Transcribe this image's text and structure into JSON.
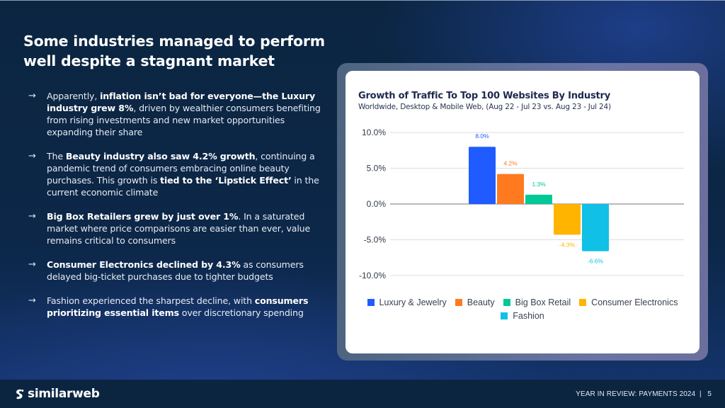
{
  "slide": {
    "title": "Some industries managed to perform well despite a stagnant market",
    "bullets": [
      {
        "icon": "arrow-right-icon",
        "segments": [
          {
            "text": "Apparently, ",
            "bold": false
          },
          {
            "text": "inflation isn’t bad for everyone—the Luxury industry grew 8%",
            "bold": true
          },
          {
            "text": ", driven by wealthier consumers benefiting from rising investments and new market opportunities expanding their share",
            "bold": false
          }
        ]
      },
      {
        "icon": "arrow-right-icon",
        "segments": [
          {
            "text": "The ",
            "bold": false
          },
          {
            "text": "Beauty industry also saw 4.2% growth",
            "bold": true
          },
          {
            "text": ", continuing a pandemic trend of consumers embracing online beauty purchases. This growth is ",
            "bold": false
          },
          {
            "text": "tied to the ‘Lipstick Effect’",
            "bold": true
          },
          {
            "text": " in the current economic climate",
            "bold": false
          }
        ]
      },
      {
        "icon": "arrow-right-icon",
        "segments": [
          {
            "text": "Big Box Retailers grew by just over 1%",
            "bold": true
          },
          {
            "text": ". In a saturated market where price comparisons are easier than ever, value remains critical to consumers",
            "bold": false
          }
        ]
      },
      {
        "icon": "arrow-right-icon",
        "segments": [
          {
            "text": "Consumer Electronics declined by 4.3%",
            "bold": true
          },
          {
            "text": " as consumers delayed big-ticket purchases due to tighter budgets",
            "bold": false
          }
        ]
      },
      {
        "icon": "arrow-right-icon",
        "segments": [
          {
            "text": "Fashion experienced the sharpest decline, with ",
            "bold": false
          },
          {
            "text": "consumers prioritizing essential items",
            "bold": true
          },
          {
            "text": " over discretionary spending",
            "bold": false
          }
        ]
      }
    ]
  },
  "chart_data": {
    "type": "bar",
    "title": "Growth of Traffic To Top 100 Websites By Industry",
    "subtitle": "Worldwide, Desktop & Mobile Web, (Aug 22 - Jul 23 vs. Aug 23 - Jul 24)",
    "xlabel": "",
    "ylabel": "",
    "ylim": [
      -10,
      10
    ],
    "yticks": [
      10,
      5,
      0,
      -5,
      -10
    ],
    "ytick_labels": [
      "10.0%",
      "5.0%",
      "0.0%",
      "-5.0%",
      "-10.0%"
    ],
    "grid": true,
    "legend_position": "bottom",
    "series": [
      {
        "name": "Luxury & Jewelry",
        "value": 8.0,
        "label": "8.0%",
        "color": "#1f5bff"
      },
      {
        "name": "Beauty",
        "value": 4.2,
        "label": "4.2%",
        "color": "#ff7a1f"
      },
      {
        "name": "Big Box Retail",
        "value": 1.3,
        "label": "1.3%",
        "color": "#00c896"
      },
      {
        "name": "Consumer Electronics",
        "value": -4.3,
        "label": "-4.3%",
        "color": "#ffb500"
      },
      {
        "name": "Fashion",
        "value": -6.6,
        "label": "-6.6%",
        "color": "#10c0e6"
      }
    ]
  },
  "footer": {
    "brand": "similarweb",
    "brand_icon": "similarweb-logo-icon",
    "page_label": "YEAR IN REVIEW: PAYMENTS 2024  |   5"
  }
}
